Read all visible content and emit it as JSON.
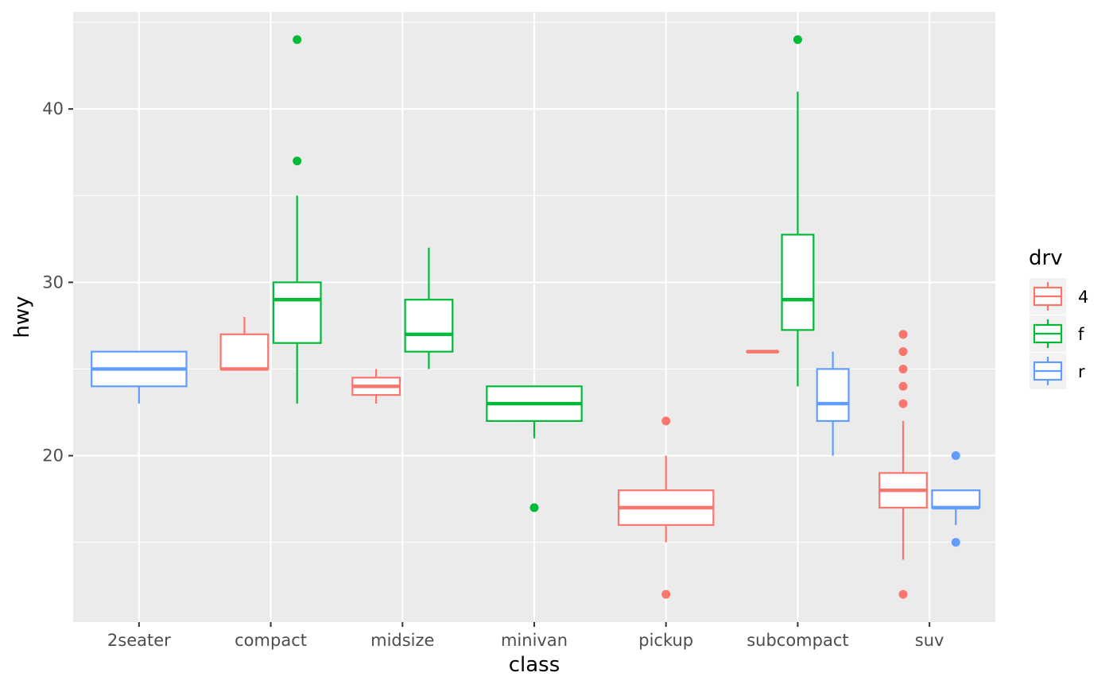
{
  "chart_data": {
    "type": "boxplot",
    "xlabel": "class",
    "ylabel": "hwy",
    "categories": [
      "2seater",
      "compact",
      "midsize",
      "minivan",
      "pickup",
      "subcompact",
      "suv"
    ],
    "y_ticks": [
      20,
      30,
      40
    ],
    "ylim": [
      10.4,
      45.6
    ],
    "grid": true,
    "legend": {
      "title": "drv",
      "position": "right",
      "entries": [
        {
          "label": "4",
          "color": "#F8766D"
        },
        {
          "label": "f",
          "color": "#00BA38"
        },
        {
          "label": "r",
          "color": "#619CFF"
        }
      ]
    },
    "colors": {
      "4": "#F8766D",
      "f": "#00BA38",
      "r": "#619CFF",
      "panel": "#EBEBEB",
      "grid": "#FFFFFF"
    },
    "boxes": [
      {
        "category": "2seater",
        "drv": "r",
        "min": 23,
        "q1": 24,
        "median": 25,
        "q3": 26,
        "max": 26,
        "outliers": []
      },
      {
        "category": "compact",
        "drv": "4",
        "min": 25,
        "q1": 25,
        "median": 25,
        "q3": 27,
        "max": 28,
        "outliers": []
      },
      {
        "category": "compact",
        "drv": "f",
        "min": 23,
        "q1": 26.5,
        "median": 29,
        "q3": 30,
        "max": 35,
        "outliers": [
          37,
          44
        ]
      },
      {
        "category": "midsize",
        "drv": "4",
        "min": 23,
        "q1": 23.5,
        "median": 24,
        "q3": 24.5,
        "max": 25,
        "outliers": []
      },
      {
        "category": "midsize",
        "drv": "f",
        "min": 25,
        "q1": 26,
        "median": 27,
        "q3": 29,
        "max": 32,
        "outliers": []
      },
      {
        "category": "minivan",
        "drv": "f",
        "min": 21,
        "q1": 22,
        "median": 23,
        "q3": 24,
        "max": 24,
        "outliers": [
          17
        ]
      },
      {
        "category": "pickup",
        "drv": "4",
        "min": 15,
        "q1": 16,
        "median": 17,
        "q3": 18,
        "max": 20,
        "outliers": [
          12,
          22
        ]
      },
      {
        "category": "subcompact",
        "drv": "4",
        "min": 26,
        "q1": 26,
        "median": 26,
        "q3": 26,
        "max": 26,
        "outliers": []
      },
      {
        "category": "subcompact",
        "drv": "f",
        "min": 24,
        "q1": 27.25,
        "median": 29,
        "q3": 32.75,
        "max": 41,
        "outliers": [
          44
        ]
      },
      {
        "category": "subcompact",
        "drv": "r",
        "min": 20,
        "q1": 22,
        "median": 23,
        "q3": 25,
        "max": 26,
        "outliers": []
      },
      {
        "category": "suv",
        "drv": "4",
        "min": 14,
        "q1": 17,
        "median": 18,
        "q3": 19,
        "max": 22,
        "outliers": [
          12,
          23,
          24,
          25,
          26,
          27
        ]
      },
      {
        "category": "suv",
        "drv": "r",
        "min": 16,
        "q1": 17,
        "median": 17,
        "q3": 18,
        "max": 18,
        "outliers": [
          15,
          20
        ]
      }
    ]
  }
}
